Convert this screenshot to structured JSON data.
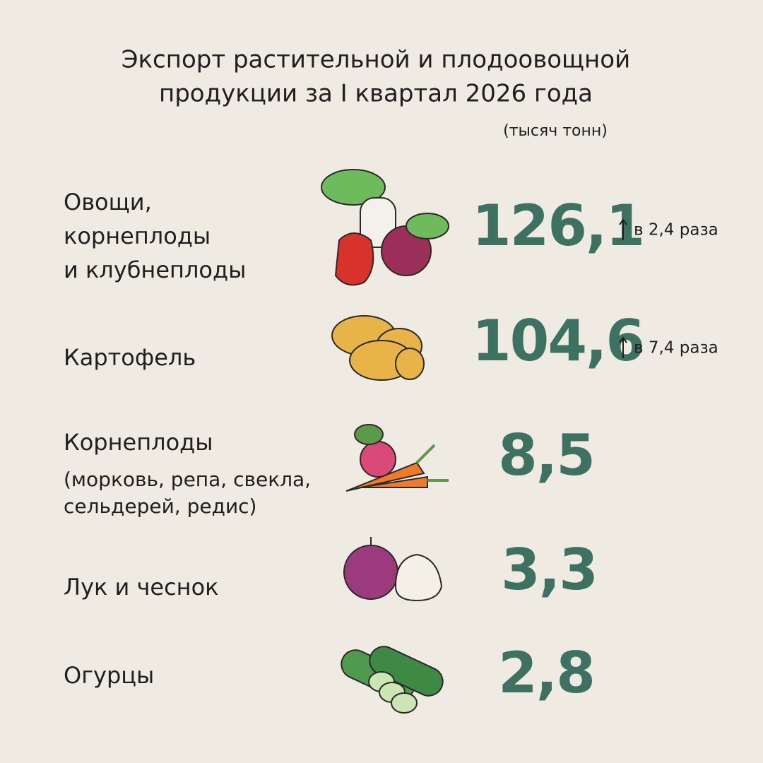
{
  "header": {
    "title": [
      "Экспорт растительной и плодоовощной",
      "продукции за I квартал 2026 года"
    ],
    "unit": "(тысяч тонн)"
  },
  "items": [
    {
      "label": [
        "Овощи,",
        "корнеплоды",
        "и клубнеплоды"
      ],
      "value": "126,1",
      "change": "в 2,4 раза"
    },
    {
      "label": [
        "Картофель"
      ],
      "value": "104,6",
      "change": "в 7,4 раза"
    },
    {
      "label": [
        "Корнеплоды",
        "(морковь, репа, свекла,",
        "сельдерей, редис)"
      ],
      "value": "8,5"
    },
    {
      "label": [
        "Лук и чеснок"
      ],
      "value": "3,3"
    },
    {
      "label": [
        "Огурцы"
      ],
      "value": "2,8"
    }
  ]
}
